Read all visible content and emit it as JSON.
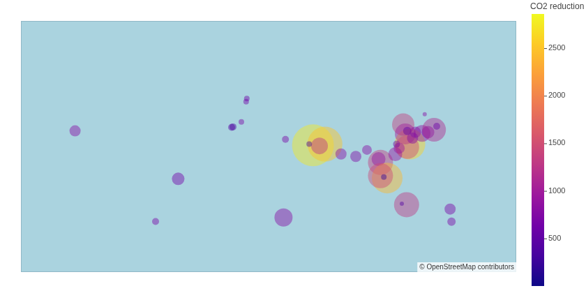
{
  "chart_data": {
    "type": "bubble",
    "colorbar_title": "CO2 reduction",
    "attribution": "© OpenStreetMap contributors",
    "xlim": [
      -157,
      198
    ],
    "ylim": [
      -61,
      77
    ],
    "tick_labels": false,
    "grid": false,
    "points": {
      "lon": [
        -118.2,
        -44.3,
        -60.5,
        -6.0,
        -5.0,
        1.0,
        4.4,
        4.9,
        32.6,
        52.3,
        60.9,
        57.0,
        49.6,
        72.4,
        83.0,
        91.0,
        100.7,
        99.3,
        105.5,
        100.7,
        103.1,
        121.8,
        117.0,
        118.5,
        119.9,
        114.1,
        111.3,
        119.9,
        125.7,
        130.5,
        134.8,
        139.1,
        141.0,
        132.4,
        123.7,
        112.2,
        119.4,
        116.0,
        150.6,
        151.6,
        31.2
      ],
      "lat": [
        33.9,
        -2.5,
        -34.5,
        36.2,
        36.5,
        39.6,
        51.0,
        52.6,
        28.0,
        23.7,
        24.6,
        23.3,
        24.6,
        17.2,
        15.3,
        20.3,
        10.6,
        13.2,
        -1.9,
        0.0,
        -1.0,
        24.6,
        38.0,
        31.8,
        22.4,
        21.6,
        17.0,
        33.8,
        33.0,
        32.2,
        33.0,
        34.6,
        36.9,
        44.2,
        28.9,
        24.6,
        -22.7,
        -22.0,
        -25.9,
        -34.6,
        -31.8
      ],
      "size": [
        8,
        9,
        5,
        5,
        5,
        4,
        4,
        4,
        5,
        30,
        25,
        12,
        4,
        8,
        8,
        7,
        18,
        10,
        22,
        18,
        4,
        22,
        16,
        15,
        17,
        8,
        10,
        6,
        8,
        12,
        9,
        17,
        5,
        3,
        8,
        5,
        18,
        3,
        8,
        6,
        13
      ],
      "co2_reduction": [
        800,
        650,
        700,
        450,
        350,
        700,
        650,
        600,
        700,
        2750,
        2500,
        1250,
        300,
        800,
        750,
        800,
        1350,
        900,
        2400,
        1450,
        200,
        2600,
        1350,
        1000,
        1500,
        950,
        900,
        500,
        800,
        850,
        700,
        1150,
        600,
        800,
        750,
        600,
        1300,
        400,
        700,
        700,
        800
      ]
    },
    "colorbar": {
      "range": [
        0,
        2860
      ],
      "ticks": [
        500,
        1000,
        1500,
        2000,
        2500
      ]
    }
  }
}
